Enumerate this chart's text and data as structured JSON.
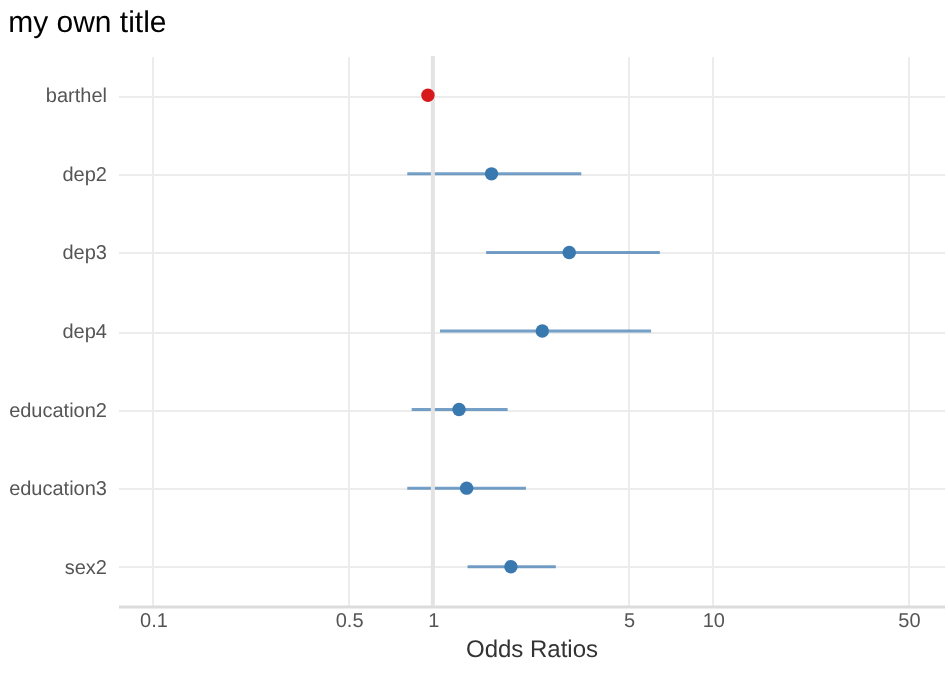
{
  "chart_data": {
    "type": "scatter",
    "title": "my own title",
    "xlabel": "Odds Ratios",
    "categories": [
      "barthel",
      "dep2",
      "dep3",
      "dep4",
      "education2",
      "education3",
      "sex2"
    ],
    "values": [
      0.96,
      1.62,
      3.07,
      2.46,
      1.24,
      1.32,
      1.9
    ],
    "errors": [
      null,
      [
        0.81,
        3.39
      ],
      [
        1.55,
        6.47
      ],
      [
        1.06,
        6.02
      ],
      [
        0.84,
        1.85
      ],
      [
        0.81,
        2.15
      ],
      [
        1.33,
        2.75
      ]
    ],
    "colors": [
      "#d7191c",
      "#3a78b0",
      "#3a78b0",
      "#3a78b0",
      "#3a78b0",
      "#3a78b0",
      "#3a78b0"
    ],
    "orientation": "horizontal",
    "log": "x",
    "xlim": [
      0.075,
      67
    ],
    "xticks": [
      0.1,
      0.5,
      1,
      5,
      10,
      50
    ],
    "ref_lines": [
      {
        "axis": "x",
        "value": 1,
        "color": "#e3e3e3"
      }
    ],
    "grid": true,
    "marker": "circle"
  }
}
